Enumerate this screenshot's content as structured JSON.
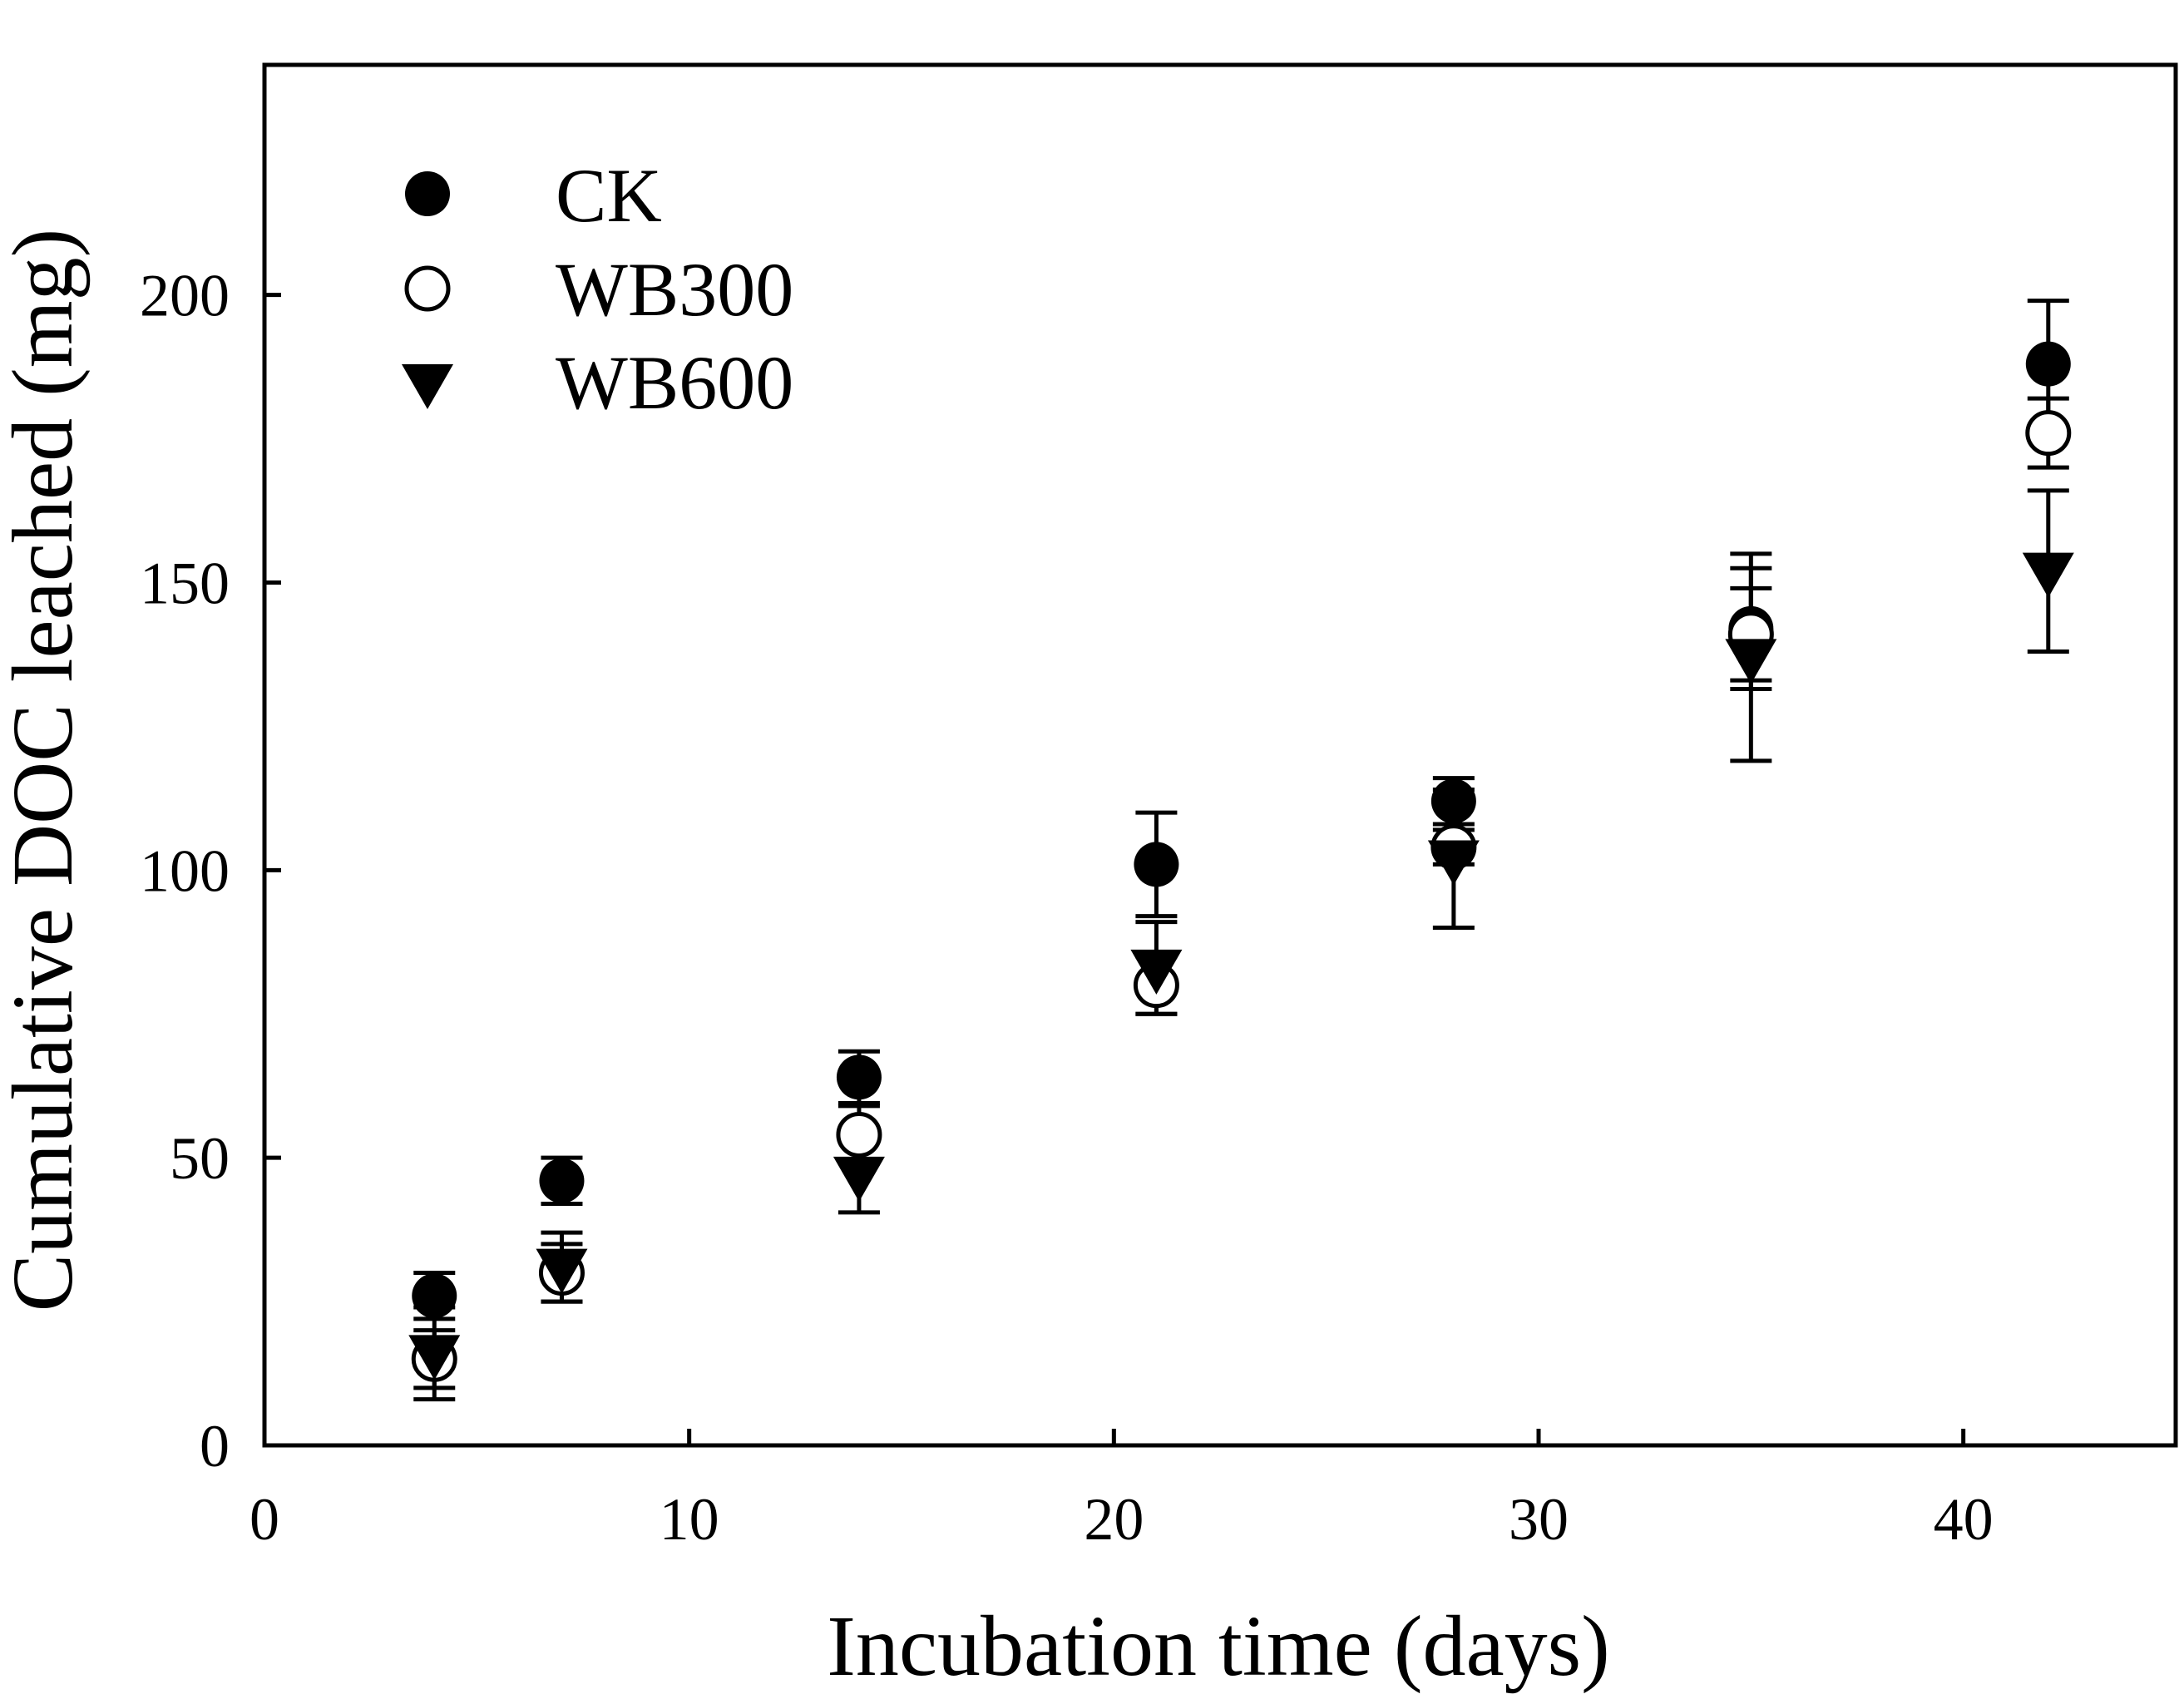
{
  "chart_data": {
    "type": "scatter",
    "title": "",
    "xlabel": "Incubation time (days)",
    "ylabel": "Cumulative DOC leached (mg)",
    "xlim": [
      0,
      45
    ],
    "ylim": [
      0,
      240
    ],
    "x_ticks": [
      0,
      10,
      20,
      30,
      40
    ],
    "y_ticks": [
      0,
      50,
      100,
      150,
      200
    ],
    "grid": false,
    "legend_position": "top-left",
    "series": [
      {
        "name": "CK",
        "marker": "filled-circle",
        "x": [
          4,
          7,
          14,
          21,
          28,
          35,
          42
        ],
        "y": [
          26,
          46,
          64,
          101,
          112,
          142,
          188
        ],
        "err": [
          4,
          4,
          4.5,
          9,
          4,
          10.5,
          11
        ]
      },
      {
        "name": "WB300",
        "marker": "open-circle",
        "x": [
          4,
          7,
          14,
          21,
          28,
          35,
          42
        ],
        "y": [
          15,
          30,
          54,
          80,
          104,
          141,
          176
        ],
        "err": [
          5,
          5,
          5,
          5,
          3,
          8,
          6
        ]
      },
      {
        "name": "WB600",
        "marker": "filled-triangle-down",
        "x": [
          4,
          7,
          14,
          21,
          28,
          35,
          42
        ],
        "y": [
          16,
          31,
          47,
          83,
          102,
          137,
          152
        ],
        "err": [
          8,
          6,
          6.5,
          8,
          12,
          18,
          14
        ]
      }
    ]
  },
  "colors": {
    "ink": "#000000",
    "background": "#ffffff"
  }
}
